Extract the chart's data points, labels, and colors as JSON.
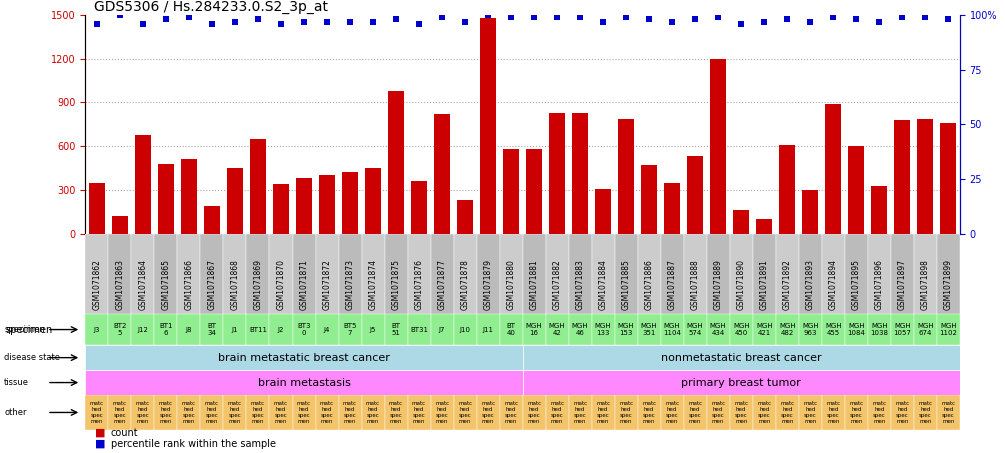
{
  "title": "GDS5306 / Hs.284233.0.S2_3p_at",
  "gsm_ids": [
    "GSM1071862",
    "GSM1071863",
    "GSM1071864",
    "GSM1071865",
    "GSM1071866",
    "GSM1071867",
    "GSM1071868",
    "GSM1071869",
    "GSM1071870",
    "GSM1071871",
    "GSM1071872",
    "GSM1071873",
    "GSM1071874",
    "GSM1071875",
    "GSM1071876",
    "GSM1071877",
    "GSM1071878",
    "GSM1071879",
    "GSM1071880",
    "GSM1071881",
    "GSM1071882",
    "GSM1071883",
    "GSM1071884",
    "GSM1071885",
    "GSM1071886",
    "GSM1071887",
    "GSM1071888",
    "GSM1071889",
    "GSM1071890",
    "GSM1071891",
    "GSM1071892",
    "GSM1071893",
    "GSM1071894",
    "GSM1071895",
    "GSM1071896",
    "GSM1071897",
    "GSM1071898",
    "GSM1071899"
  ],
  "counts": [
    350,
    120,
    680,
    480,
    510,
    190,
    450,
    650,
    340,
    380,
    400,
    420,
    450,
    980,
    360,
    820,
    230,
    1480,
    580,
    580,
    830,
    830,
    310,
    790,
    470,
    350,
    530,
    1200,
    160,
    100,
    610,
    300,
    890,
    600,
    330,
    780,
    790,
    760
  ],
  "percentiles": [
    96,
    100,
    96,
    98,
    99,
    96,
    97,
    98,
    96,
    97,
    97,
    97,
    97,
    98,
    96,
    99,
    97,
    100,
    99,
    99,
    99,
    99,
    97,
    99,
    98,
    97,
    98,
    99,
    96,
    97,
    98,
    97,
    99,
    98,
    97,
    99,
    99,
    98
  ],
  "specimens": [
    "J3",
    "BT2\n5",
    "J12",
    "BT1\n6",
    "J8",
    "BT\n34",
    "J1",
    "BT11",
    "J2",
    "BT3\n0",
    "J4",
    "BT5\n7",
    "J5",
    "BT\n51",
    "BT31",
    "J7",
    "J10",
    "J11",
    "BT\n40",
    "MGH\n16",
    "MGH\n42",
    "MGH\n46",
    "MGH\n133",
    "MGH\n153",
    "MGH\n351",
    "MGH\n1104",
    "MGH\n574",
    "MGH\n434",
    "MGH\n450",
    "MGH\n421",
    "MGH\n482",
    "MGH\n963",
    "MGH\n455",
    "MGH\n1084",
    "MGH\n1038",
    "MGH\n1057",
    "MGH\n674",
    "MGH\n1102"
  ],
  "specimen_colors_brain": "#90EE90",
  "specimen_colors_mgh": "#90EE90",
  "disease_state_brain": "brain metastatic breast cancer",
  "disease_state_nonmeta": "nonmetastatic breast cancer",
  "tissue_brain": "brain metastasis",
  "tissue_primary": "primary breast tumor",
  "other_text": "matc\nhed\nspec\nmen",
  "n_brain": 19,
  "n_mgh": 19,
  "ylim_left": [
    0,
    1500
  ],
  "ylim_right": [
    0,
    100
  ],
  "yticks_left": [
    0,
    300,
    600,
    900,
    1200,
    1500
  ],
  "yticks_right": [
    0,
    25,
    50,
    75,
    100
  ],
  "bar_color": "#CC0000",
  "dot_color": "#0000CC",
  "grid_color": "#aaaaaa",
  "bg_color": "#ffffff",
  "label_color_left": "#CC0000",
  "label_color_right": "#0000CC",
  "header_bg": "#cccccc",
  "disease_bg": "#add8e6",
  "tissue_bg": "#ff88ff",
  "other_bg": "#f4c46a",
  "label_font_size": 7,
  "title_font_size": 10
}
